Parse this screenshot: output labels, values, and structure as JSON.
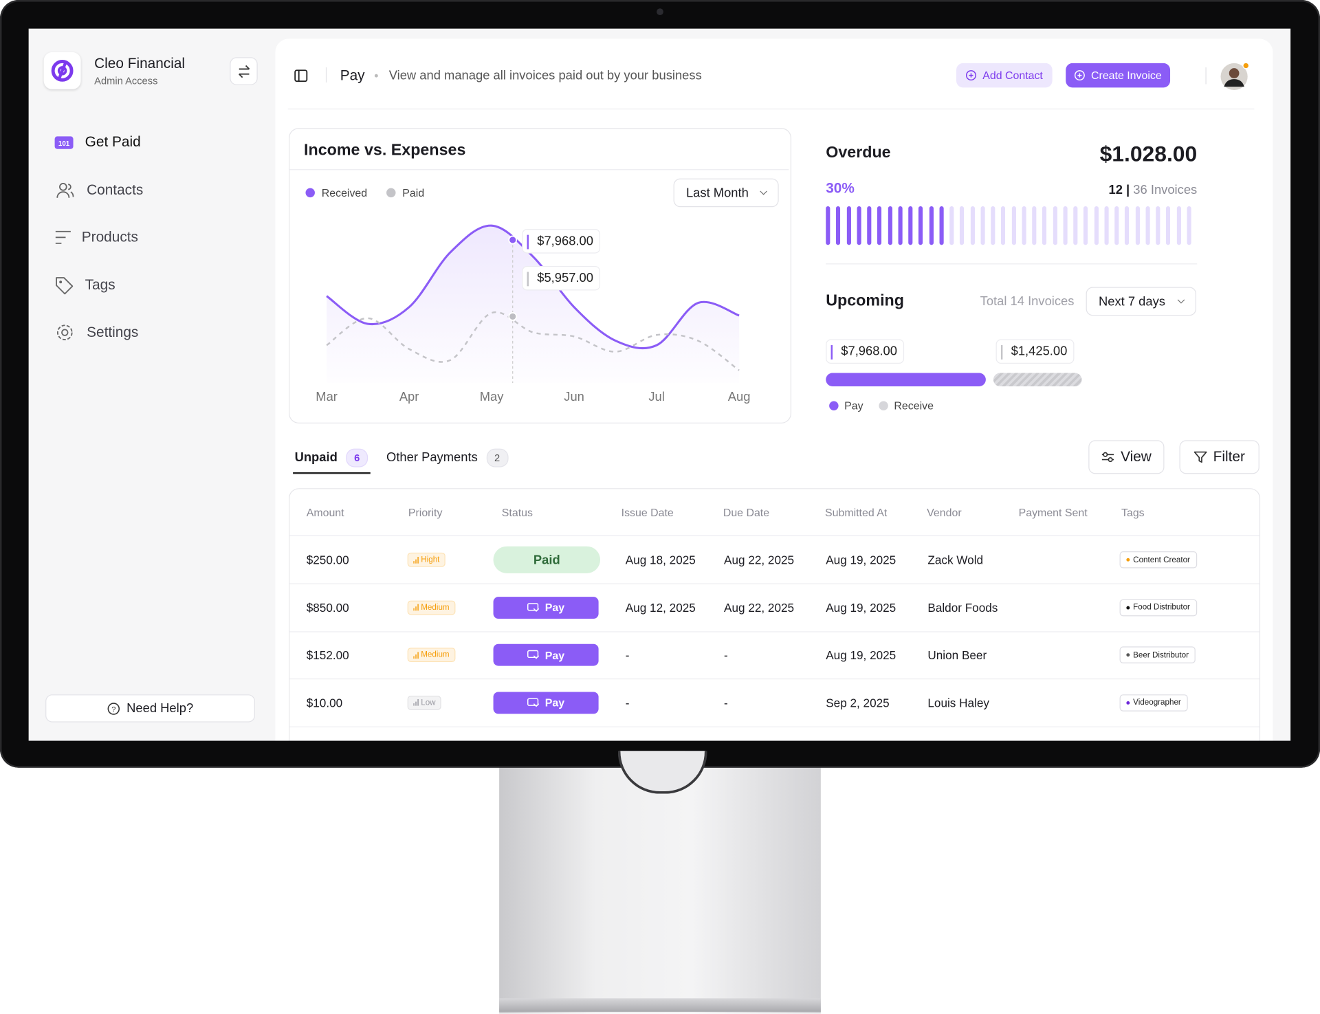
{
  "sidebar": {
    "app_name": "Cleo Financial",
    "role": "Admin Access",
    "nav": [
      "Get Paid",
      "Contacts",
      "Products",
      "Tags",
      "Settings"
    ],
    "help": "Need Help?"
  },
  "header": {
    "title": "Pay",
    "description": "View and manage all invoices paid out by your business",
    "buttons": [
      "Add Contact",
      "Create Invoice"
    ]
  },
  "chart_data": {
    "type": "line",
    "title": "Income vs. Expenses",
    "period": "Last Month",
    "categories": [
      "Mar",
      null,
      "Apr",
      null,
      "May",
      null,
      "Jun",
      null,
      "Jul",
      null,
      "Aug"
    ],
    "series": [
      {
        "name": "Received",
        "color": "#8b5cf6",
        "values": [
          6490,
          5760,
          6200,
          7640,
          8340,
          7530,
          6200,
          5320,
          5200,
          6310,
          5980
        ]
      },
      {
        "name": "Paid",
        "color": "#c4c4c8",
        "values": [
          5200,
          5910,
          5100,
          4810,
          6050,
          5540,
          5430,
          5030,
          5470,
          5320,
          4540
        ]
      }
    ],
    "tooltip": [
      "$7,968.00",
      "$5,957.00"
    ]
  },
  "overdue": {
    "title": "Overdue",
    "amount": "$1.028.00",
    "percent": "30%",
    "count": 12,
    "separator": "|",
    "total": 36,
    "unit": "Invoices"
  },
  "upcoming": {
    "title": "Upcoming",
    "total_label": "Total 14 Invoices",
    "period": "Next 7 days",
    "amounts": [
      "$7,968.00",
      "$1,425.00"
    ],
    "legend": [
      "Pay",
      "Receive"
    ]
  },
  "tabs": [
    {
      "label": "Unpaid",
      "count": 6
    },
    {
      "label": "Other Payments",
      "count": 2
    }
  ],
  "actions": [
    "View",
    "Filter"
  ],
  "table": {
    "columns": [
      "Amount",
      "Priority",
      "Status",
      "Issue Date",
      "Due Date",
      "Submitted At",
      "Vendor",
      "Payment Sent",
      "Tags"
    ],
    "rows": [
      {
        "amount": "$250.00",
        "priority": {
          "label": "Hight",
          "color": "#f59e0b"
        },
        "status": {
          "label": "Paid",
          "color": "#d9f2dd",
          "text_color": "#2f6b3a"
        },
        "issue_date": "Aug 18, 2025",
        "due_date": "Aug 22, 2025",
        "submitted_at": "Aug 19, 2025",
        "vendor": "Zack Wold",
        "tag": {
          "label": "Content Creator",
          "color": "#f59e0b"
        }
      },
      {
        "amount": "$850.00",
        "priority": {
          "label": "Medium",
          "color": "#f59e0b"
        },
        "status": {
          "label": "Pay",
          "color": "#8b5cf6",
          "text_color": "#ffffff"
        },
        "issue_date": "Aug 12, 2025",
        "due_date": "Aug 22, 2025",
        "submitted_at": "Aug 19, 2025",
        "vendor": "Baldor Foods",
        "tag": {
          "label": "Food Distributor",
          "color": "#111111"
        }
      },
      {
        "amount": "$152.00",
        "priority": {
          "label": "Medium",
          "color": "#f59e0b"
        },
        "status": {
          "label": "Pay",
          "color": "#8b5cf6",
          "text_color": "#ffffff"
        },
        "issue_date": "-",
        "due_date": "-",
        "submitted_at": "Aug 19, 2025",
        "vendor": "Union Beer",
        "tag": {
          "label": "Beer Distributor",
          "color": "#555555"
        }
      },
      {
        "amount": "$10.00",
        "priority": {
          "label": "Low",
          "color": "#9a9aa2"
        },
        "status": {
          "label": "Pay",
          "color": "#8b5cf6",
          "text_color": "#ffffff"
        },
        "issue_date": "-",
        "due_date": "-",
        "submitted_at": "Sep 2, 2025",
        "vendor": "Louis Haley",
        "tag": {
          "label": "Videographer",
          "color": "#6d28d9"
        }
      }
    ]
  }
}
